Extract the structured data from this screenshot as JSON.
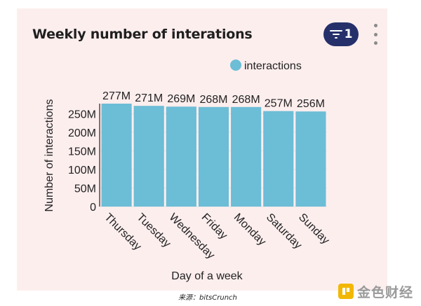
{
  "header": {
    "title": "Weekly number of interations",
    "filter_count": "1"
  },
  "watermark": "bitsCrunch",
  "footer": {
    "source": "来源：bitsCrunch",
    "brand": "金色财经"
  },
  "colors": {
    "bar": "#6cbdd6",
    "card_bg": "#fdeeee",
    "filter_button": "#25306a"
  },
  "chart_data": {
    "type": "bar",
    "categories": [
      "Thursday",
      "Tuesday",
      "Wednesday",
      "Friday",
      "Monday",
      "Saturday",
      "Sunday"
    ],
    "series": [
      {
        "name": "interactions",
        "values": [
          277,
          271,
          269,
          268,
          268,
          257,
          256
        ],
        "labels": [
          "277M",
          "271M",
          "269M",
          "268M",
          "268M",
          "257M",
          "256M"
        ]
      }
    ],
    "unit": "M",
    "xlabel": "Day of a week",
    "ylabel": "Number of interactions",
    "ylim": [
      0,
      277
    ],
    "yticks": [
      0,
      50,
      100,
      150,
      200,
      250
    ],
    "ytick_labels": [
      "0",
      "50M",
      "100M",
      "150M",
      "200M",
      "250M"
    ],
    "legend": "top-center",
    "grid": true
  }
}
